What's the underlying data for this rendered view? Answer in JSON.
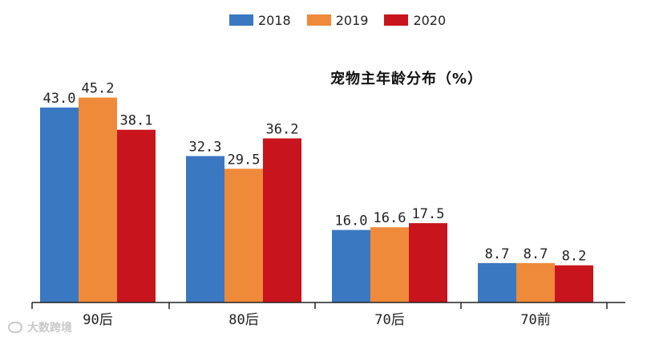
{
  "legend": [
    {
      "name": "2018",
      "color": "#3a78c2"
    },
    {
      "name": "2019",
      "color": "#ef8a3a"
    },
    {
      "name": "2020",
      "color": "#c8141c"
    }
  ],
  "watermark": {
    "text": "大数跨境"
  },
  "chart_data": {
    "type": "bar",
    "title": "宠物主年龄分布（%）",
    "categories": [
      "90后",
      "80后",
      "70后",
      "70前"
    ],
    "series": [
      {
        "name": "2018",
        "color": "#3a78c2",
        "values": [
          43.0,
          32.3,
          16.0,
          8.7
        ],
        "labels": [
          "43.0",
          "32.3",
          "16.0",
          "8.7"
        ]
      },
      {
        "name": "2019",
        "color": "#ef8a3a",
        "values": [
          45.2,
          29.5,
          16.6,
          8.7
        ],
        "labels": [
          "45.2",
          "29.5",
          "16.6",
          "8.7"
        ]
      },
      {
        "name": "2020",
        "color": "#c8141c",
        "values": [
          38.1,
          36.2,
          17.5,
          8.2
        ],
        "labels": [
          "38.1",
          "36.2",
          "17.5",
          "8.2"
        ]
      }
    ],
    "xlabel": "",
    "ylabel": "",
    "ylim": [
      0,
      48
    ],
    "grid": false,
    "legend_position": "top"
  }
}
